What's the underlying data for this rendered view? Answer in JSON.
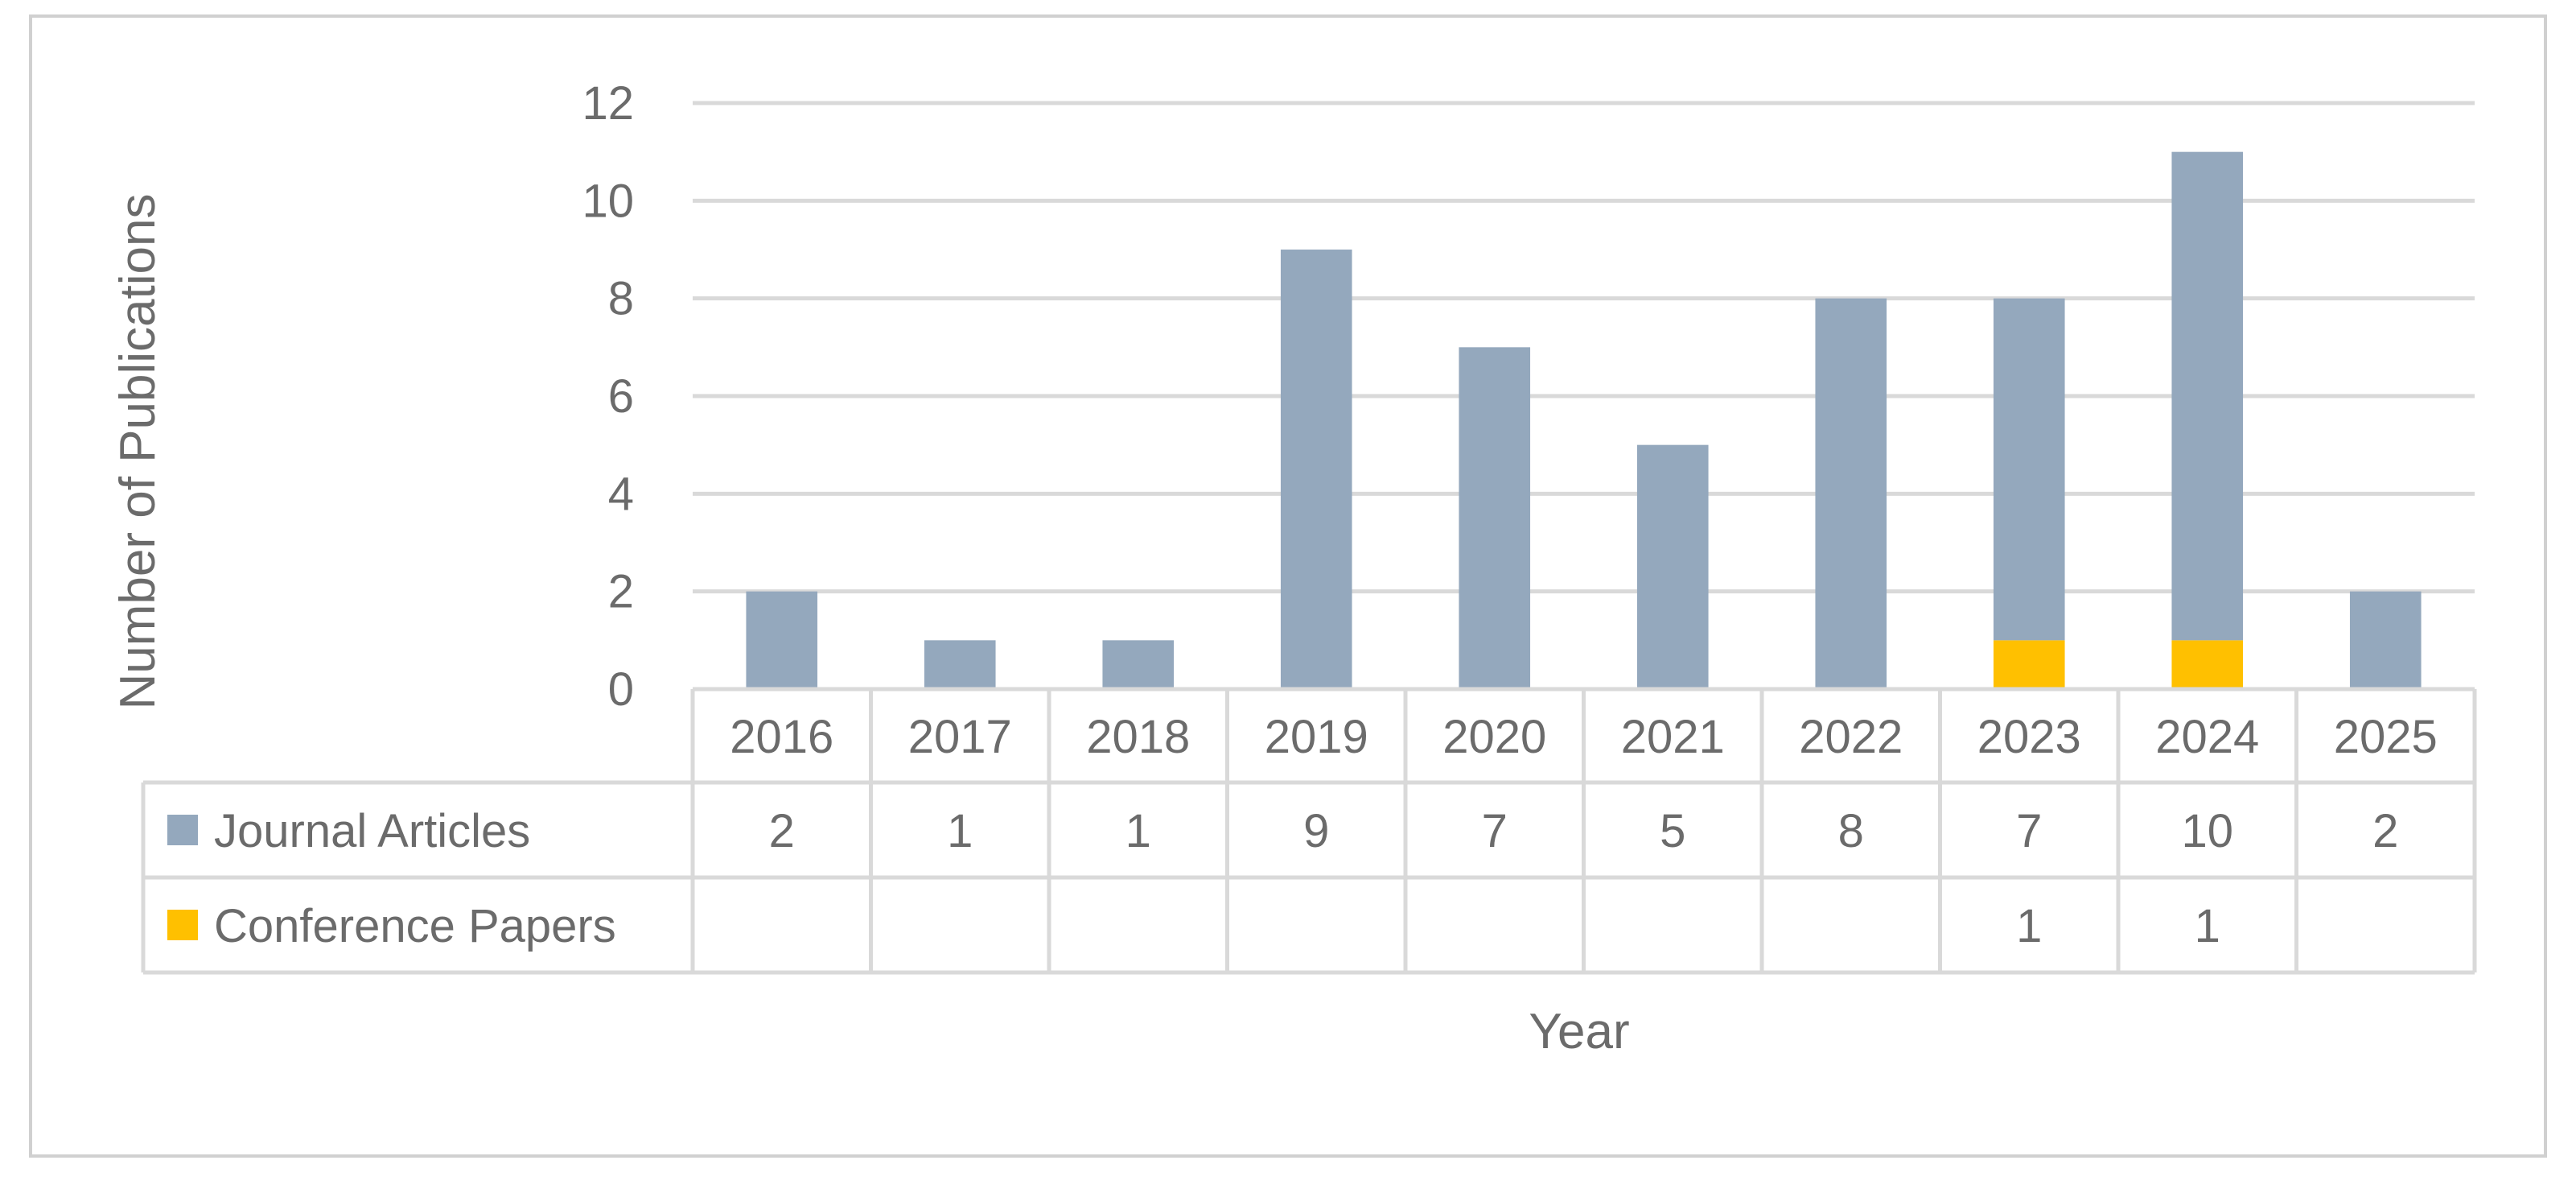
{
  "chart_data": {
    "type": "bar",
    "stacked": true,
    "categories": [
      "2016",
      "2017",
      "2018",
      "2019",
      "2020",
      "2021",
      "2022",
      "2023",
      "2024",
      "2025"
    ],
    "series": [
      {
        "name": "Journal Articles",
        "values": [
          2,
          1,
          1,
          9,
          7,
          5,
          8,
          7,
          10,
          2
        ],
        "color": "#94a8bd"
      },
      {
        "name": "Conference Papers",
        "values": [
          null,
          null,
          null,
          null,
          null,
          null,
          null,
          1,
          1,
          null
        ],
        "color": "#ffc000"
      }
    ],
    "ylabel": "Number of Publications",
    "xlabel": "Year",
    "ylim": [
      0,
      12
    ],
    "yticks": [
      0,
      2,
      4,
      6,
      8,
      10,
      12
    ],
    "grid": true,
    "legend": "data-table",
    "data_table": true
  }
}
